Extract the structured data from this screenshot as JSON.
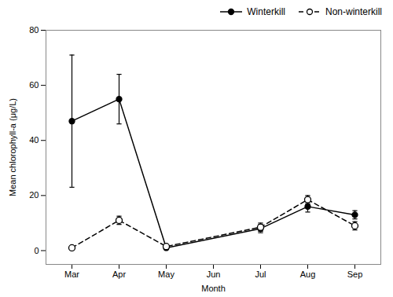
{
  "chart_data": {
    "type": "line",
    "categories": [
      "Mar",
      "Apr",
      "May",
      "Jun",
      "Jul",
      "Aug",
      "Sep"
    ],
    "series": [
      {
        "name": "Winterkill",
        "color": "black",
        "line_style": "solid",
        "marker": "circle",
        "values": [
          47,
          55,
          1,
          null,
          8,
          16,
          13
        ],
        "errors": [
          24,
          9,
          0.5,
          null,
          1.5,
          2,
          1.5
        ]
      },
      {
        "name": "Non-winterkill",
        "color": "black",
        "line_style": "dashed",
        "marker": "open_circle",
        "values": [
          1,
          11,
          1.5,
          null,
          8.5,
          18.5,
          9
        ],
        "errors": [
          0.5,
          1.5,
          0.5,
          null,
          1.5,
          1.5,
          1.5
        ]
      }
    ],
    "xlabel": "Month",
    "ylabel": "Mean chlorophyll-a (μg/L)",
    "ylim": [
      -5,
      80
    ],
    "yticks": [
      0,
      20,
      40,
      60,
      80
    ],
    "grid": false,
    "legend": "upper right"
  }
}
